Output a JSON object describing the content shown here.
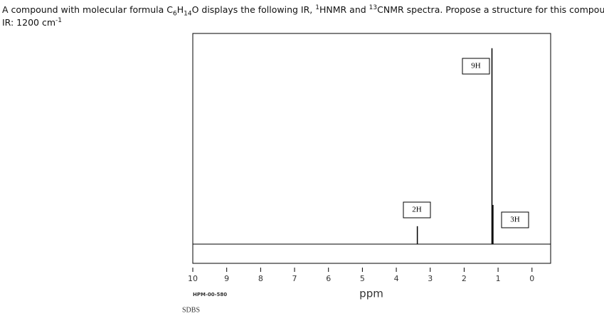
{
  "question": [
    "A compound with molecular formula C",
    "6",
    "H",
    "14",
    "O displays the following IR, ",
    "1",
    "HNMR and ",
    "13",
    "CNMR spectra. Propose a structure for this compound."
  ],
  "ir": [
    "IR: 1200 cm",
    "-1"
  ],
  "chart_data": {
    "type": "nmr",
    "x": [
      3.38,
      1.18,
      1.15
    ],
    "values": [
      8.5,
      93,
      18.6
    ],
    "annotations": [
      "2H",
      "9H",
      "3H"
    ],
    "color": "#000000",
    "xlim": [
      10,
      -0.55
    ],
    "ylim": [
      0,
      100
    ],
    "xticks": [
      10,
      9,
      8,
      7,
      6,
      5,
      4,
      3,
      2,
      1,
      0
    ],
    "xlabel": "ppm",
    "code": "HPM-00-580",
    "source": "SDBS"
  }
}
